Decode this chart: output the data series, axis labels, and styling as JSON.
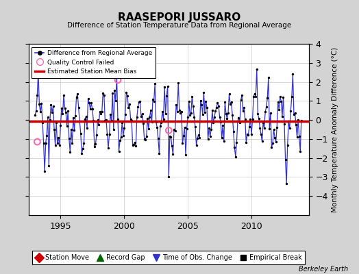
{
  "title": "RAASEPORI JUSSARO",
  "subtitle": "Difference of Station Temperature Data from Regional Average",
  "ylabel": "Monthly Temperature Anomaly Difference (°C)",
  "bias_value": -0.05,
  "xlim": [
    1992.5,
    2014.5
  ],
  "ylim": [
    -5,
    4
  ],
  "yticks": [
    -4,
    -3,
    -2,
    -1,
    0,
    1,
    2,
    3,
    4
  ],
  "xticks": [
    1995,
    2000,
    2005,
    2010
  ],
  "line_color": "#3333cc",
  "bias_color": "#cc0000",
  "dot_color": "#000000",
  "qc_color": "#ff69b4",
  "background_color": "#d3d3d3",
  "plot_bg_color": "#ffffff",
  "watermark": "Berkeley Earth",
  "seed": 42
}
